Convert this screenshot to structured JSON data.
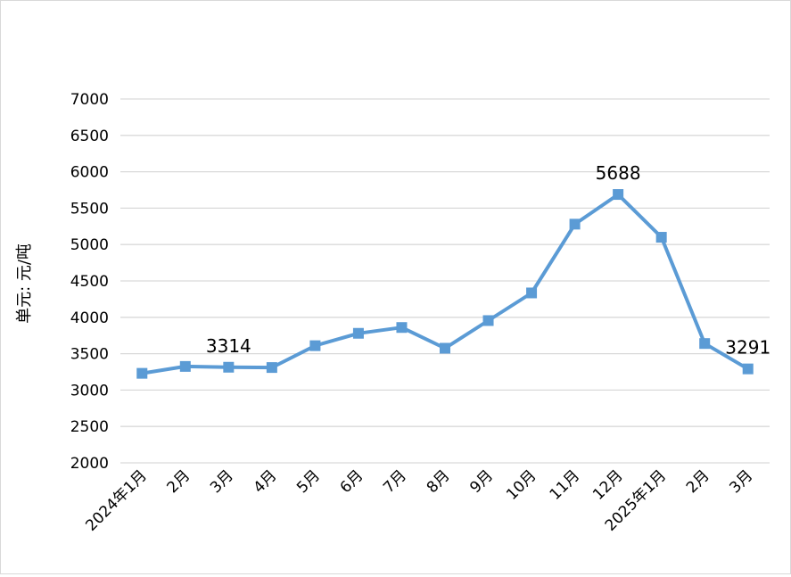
{
  "chart_data": {
    "type": "line",
    "title": "",
    "xlabel": "",
    "ylabel": "单元: 元/吨",
    "categories": [
      "2024年1月",
      "2月",
      "3月",
      "4月",
      "5月",
      "6月",
      "7月",
      "8月",
      "9月",
      "10月",
      "11月",
      "12月",
      "2025年1月",
      "2月",
      "3月"
    ],
    "series": [
      {
        "values": [
          3230,
          3325,
          3314,
          3310,
          3610,
          3780,
          3860,
          3575,
          3955,
          4335,
          5280,
          5688,
          5100,
          3640,
          3291
        ]
      }
    ],
    "data_labels": [
      {
        "index": 2,
        "text": "3314"
      },
      {
        "index": 11,
        "text": "5688"
      },
      {
        "index": 14,
        "text": "3291"
      }
    ],
    "ylim": [
      2000,
      7000
    ],
    "yticks": [
      2000,
      2500,
      3000,
      3500,
      4000,
      4500,
      5000,
      5500,
      6000,
      6500,
      7000
    ],
    "ytick_labels": [
      "2000",
      "2500",
      "3000",
      "3500",
      "4000",
      "4500",
      "5000",
      "5500",
      "6000",
      "6500",
      "7000"
    ],
    "grid": true,
    "legend": "none",
    "colors": {
      "line": "#5b9bd5",
      "grid": "#d9d9d9",
      "text": "#000000"
    }
  }
}
